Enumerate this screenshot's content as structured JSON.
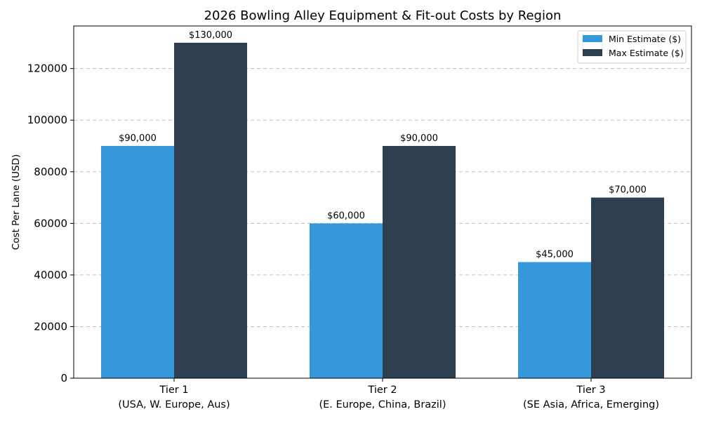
{
  "chart_data": {
    "type": "bar",
    "title": "2026 Bowling Alley Equipment & Fit-out Costs by Region",
    "ylabel": "Cost Per Lane (USD)",
    "xlabel": "",
    "categories": [
      [
        "Tier 1",
        "(USA, W. Europe, Aus)"
      ],
      [
        "Tier 2",
        "(E. Europe, China, Brazil)"
      ],
      [
        "Tier 3",
        "(SE Asia, Africa, Emerging)"
      ]
    ],
    "series": [
      {
        "name": "Min Estimate ($)",
        "color": "#3498db",
        "values": [
          90000,
          60000,
          45000
        ],
        "labels": [
          "$90,000",
          "$60,000",
          "$45,000"
        ]
      },
      {
        "name": "Max Estimate ($)",
        "color": "#2c3e50",
        "values": [
          130000,
          90000,
          70000
        ],
        "labels": [
          "$130,000",
          "$90,000",
          "$70,000"
        ]
      }
    ],
    "ylim": [
      0,
      136500
    ],
    "yticks": [
      0,
      20000,
      40000,
      60000,
      80000,
      100000,
      120000
    ],
    "grid": true,
    "legend_position": "top-right"
  }
}
